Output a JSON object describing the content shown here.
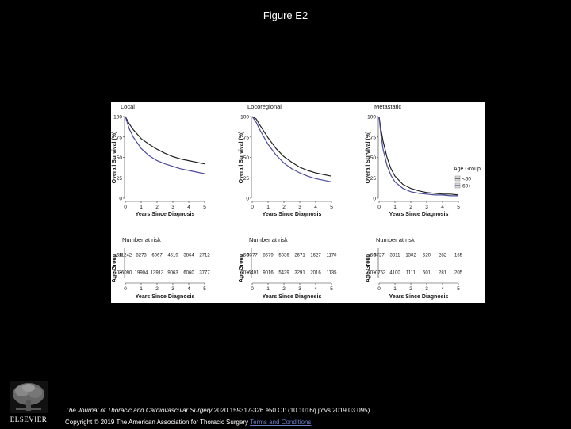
{
  "slide": {
    "title": "Figure E2",
    "citation_journal": "The Journal of Thoracic and Cardiovascular Surgery",
    "citation_rest": " 2020 159317-326.e50 OI: (10.1016/j.jtcvs.2019.03.095)",
    "copyright": "Copyright © 2019 The American Association for Thoracic Surgery ",
    "terms_link": "Terms and Conditions",
    "publisher": "ELSEVIER"
  },
  "chart_data": {
    "type": "line",
    "shared": {
      "xlabel": "Years Since Diagnosis",
      "ylabel": "Overall Survival (%)",
      "x_ticks": [
        "0",
        "1",
        "2",
        "3",
        "4",
        "5"
      ],
      "y_ticks": [
        "0",
        "25",
        "50",
        "75",
        "100"
      ],
      "xlim": [
        0,
        5
      ],
      "ylim": [
        0,
        100
      ],
      "risk_title": "Number at risk",
      "risk_ylabel": "Age Group",
      "risk_groups": [
        "<60",
        "60+"
      ],
      "legend_title": "Age Group",
      "legend_entries": [
        {
          "label": "<60",
          "color": "#222222"
        },
        {
          "label": "60+",
          "color": "#4a4a9a"
        }
      ],
      "legend_position": "right"
    },
    "panels": [
      {
        "title": "Local",
        "x": [
          0,
          0.25,
          0.5,
          1,
          1.5,
          2,
          2.5,
          3,
          3.5,
          4,
          4.5,
          5
        ],
        "series": [
          {
            "name": "<60",
            "values": [
              100,
              91,
              84,
              73,
              66,
              60,
              55,
              51,
              48,
              46,
              44,
              42
            ]
          },
          {
            "name": "60+",
            "values": [
              100,
              85,
              75,
              61,
              52,
              46,
              42,
              39,
              36,
              34,
              32,
              30
            ]
          }
        ],
        "risk": [
          [
            "11242",
            "8273",
            "6067",
            "4519",
            "3864",
            "2712"
          ],
          [
            "26090",
            "19904",
            "13913",
            "9063",
            "6060",
            "3777"
          ]
        ]
      },
      {
        "title": "Locoregional",
        "x": [
          0,
          0.25,
          0.5,
          1,
          1.5,
          2,
          2.5,
          3,
          3.5,
          4,
          4.5,
          5
        ],
        "series": [
          {
            "name": "<60",
            "values": [
              100,
              97,
              89,
              74,
              61,
              51,
              44,
              38,
              34,
              31,
              29,
              27
            ]
          },
          {
            "name": "60+",
            "values": [
              100,
              93,
              83,
              66,
              53,
              43,
              36,
              31,
              27,
              24,
              22,
              20
            ]
          }
        ],
        "risk": [
          [
            "9377",
            "8679",
            "5036",
            "2671",
            "1627",
            "1170"
          ],
          [
            "16491",
            "9016",
            "5429",
            "3291",
            "2016",
            "1135"
          ]
        ]
      },
      {
        "title": "Metastatic",
        "x": [
          0,
          0.1,
          0.25,
          0.5,
          0.75,
          1,
          1.5,
          2,
          2.5,
          3,
          3.5,
          4,
          4.5,
          5
        ],
        "series": [
          {
            "name": "<60",
            "values": [
              100,
              86,
              70,
              50,
              36,
              27,
              17,
              12,
              9,
              7,
              6,
              5,
              5,
              4
            ]
          },
          {
            "name": "60+",
            "values": [
              100,
              80,
              60,
              40,
              28,
              20,
              12,
              8,
              6,
              5,
              4,
              4,
              3,
              3
            ]
          }
        ],
        "risk": [
          [
            "8727",
            "3311",
            "1302",
            "520",
            "282",
            "165"
          ],
          [
            "10763",
            "4100",
            "1111",
            "501",
            "281",
            "205"
          ]
        ]
      }
    ]
  }
}
